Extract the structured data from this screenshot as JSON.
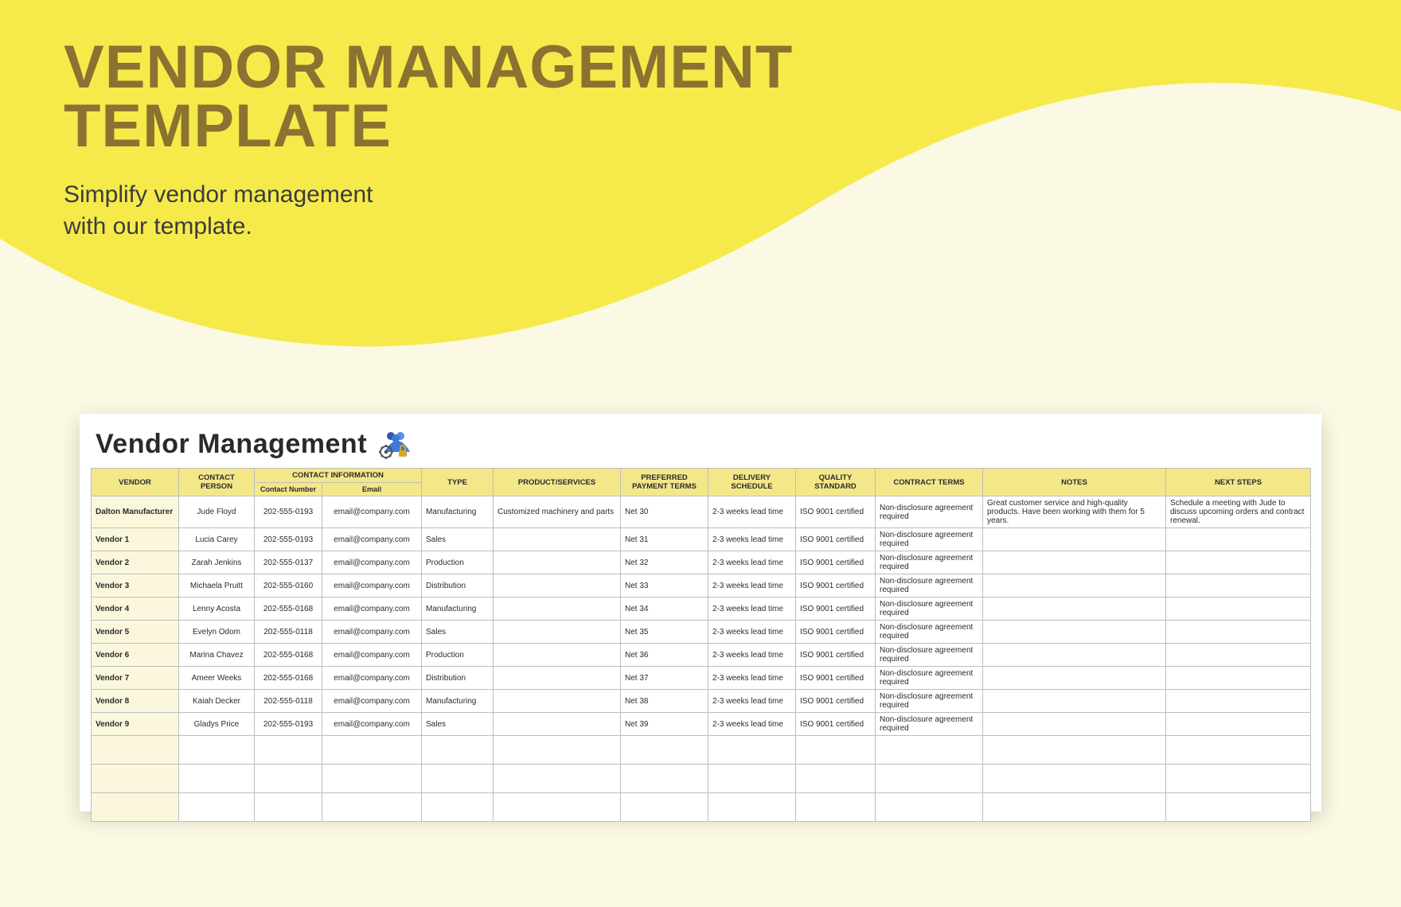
{
  "colors": {
    "page_bg": "#fbf9e3",
    "wave": "#f5ea4a",
    "title": "#8a7230",
    "subtitle": "#3c3c3c",
    "sheet_bg": "#ffffff",
    "header_bg": "#f3e78a",
    "border": "#bdbdbd",
    "vendor_col_bg": "#fbf7dc"
  },
  "hero": {
    "title_line1": "VENDOR MANAGEMENT",
    "title_line2": "TEMPLATE",
    "subtitle_line1": "Simplify vendor management",
    "subtitle_line2": "with our template."
  },
  "sheet": {
    "title": "Vendor Management",
    "icon_name": "team-gear-icon",
    "blank_rows": 3,
    "columns": {
      "vendor": "VENDOR",
      "contact_person": "CONTACT PERSON",
      "contact_info": "CONTACT INFORMATION",
      "contact_number": "Contact Number",
      "email": "Email",
      "type": "TYPE",
      "product_services": "PRODUCT/SERVICES",
      "preferred_payment": "PREFERRED PAYMENT TERMS",
      "delivery_schedule": "DELIVERY SCHEDULE",
      "quality_standard": "QUALITY STANDARD",
      "contract_terms": "CONTRACT TERMS",
      "notes": "NOTES",
      "next_steps": "NEXT STEPS"
    },
    "rows": [
      {
        "vendor": "Dalton Manufacturer",
        "person": "Jude Floyd",
        "phone": "202-555-0193",
        "email": "email@company.com",
        "type": "Manufacturing",
        "product": "Customized machinery and parts",
        "payment": "Net 30",
        "delivery": "2-3 weeks lead time",
        "quality": "ISO 9001 certified",
        "contract": "Non-disclosure agreement required",
        "notes": "Great customer service and high-quality products. Have been working with them for 5 years.",
        "next": "Schedule a meeting with Jude to discuss upcoming orders and contract renewal."
      },
      {
        "vendor": "Vendor 1",
        "person": "Lucia Carey",
        "phone": "202-555-0193",
        "email": "email@company.com",
        "type": "Sales",
        "product": "",
        "payment": "Net 31",
        "delivery": "2-3 weeks lead time",
        "quality": "ISO 9001 certified",
        "contract": "Non-disclosure agreement required",
        "notes": "",
        "next": ""
      },
      {
        "vendor": "Vendor 2",
        "person": "Zarah Jenkins",
        "phone": "202-555-0137",
        "email": "email@company.com",
        "type": "Production",
        "product": "",
        "payment": "Net 32",
        "delivery": "2-3 weeks lead time",
        "quality": "ISO 9001 certified",
        "contract": "Non-disclosure agreement required",
        "notes": "",
        "next": ""
      },
      {
        "vendor": "Vendor 3",
        "person": "Michaela Pruitt",
        "phone": "202-555-0160",
        "email": "email@company.com",
        "type": "Distribution",
        "product": "",
        "payment": "Net 33",
        "delivery": "2-3 weeks lead time",
        "quality": "ISO 9001 certified",
        "contract": "Non-disclosure agreement required",
        "notes": "",
        "next": ""
      },
      {
        "vendor": "Vendor 4",
        "person": "Lenny Acosta",
        "phone": "202-555-0168",
        "email": "email@company.com",
        "type": "Manufacturing",
        "product": "",
        "payment": "Net 34",
        "delivery": "2-3 weeks lead time",
        "quality": "ISO 9001 certified",
        "contract": "Non-disclosure agreement required",
        "notes": "",
        "next": ""
      },
      {
        "vendor": "Vendor 5",
        "person": "Evelyn Odom",
        "phone": "202-555-0118",
        "email": "email@company.com",
        "type": "Sales",
        "product": "",
        "payment": "Net 35",
        "delivery": "2-3 weeks lead time",
        "quality": "ISO 9001 certified",
        "contract": "Non-disclosure agreement required",
        "notes": "",
        "next": ""
      },
      {
        "vendor": "Vendor 6",
        "person": "Marina Chavez",
        "phone": "202-555-0168",
        "email": "email@company.com",
        "type": "Production",
        "product": "",
        "payment": "Net 36",
        "delivery": "2-3 weeks lead time",
        "quality": "ISO 9001 certified",
        "contract": "Non-disclosure agreement required",
        "notes": "",
        "next": ""
      },
      {
        "vendor": "Vendor 7",
        "person": "Ameer Weeks",
        "phone": "202-555-0168",
        "email": "email@company.com",
        "type": "Distribution",
        "product": "",
        "payment": "Net 37",
        "delivery": "2-3 weeks lead time",
        "quality": "ISO 9001 certified",
        "contract": "Non-disclosure agreement required",
        "notes": "",
        "next": ""
      },
      {
        "vendor": "Vendor 8",
        "person": "Kaiah Decker",
        "phone": "202-555-0118",
        "email": "email@company.com",
        "type": "Manufacturing",
        "product": "",
        "payment": "Net 38",
        "delivery": "2-3 weeks lead time",
        "quality": "ISO 9001 certified",
        "contract": "Non-disclosure agreement required",
        "notes": "",
        "next": ""
      },
      {
        "vendor": "Vendor 9",
        "person": "Gladys Price",
        "phone": "202-555-0193",
        "email": "email@company.com",
        "type": "Sales",
        "product": "",
        "payment": "Net 39",
        "delivery": "2-3 weeks lead time",
        "quality": "ISO 9001 certified",
        "contract": "Non-disclosure agreement required",
        "notes": "",
        "next": ""
      }
    ]
  }
}
